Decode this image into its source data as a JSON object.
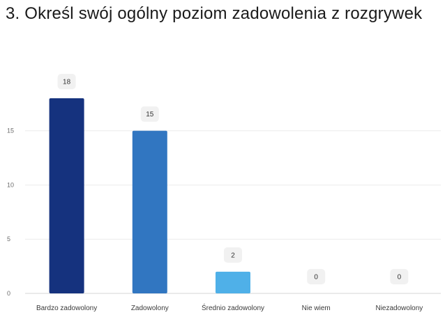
{
  "question": {
    "title": "3. Określ swój ogólny poziom zadowolenia z rozgrywek"
  },
  "chart_data": {
    "type": "bar",
    "title": "3. Określ swój ogólny poziom zadowolenia z rozgrywek",
    "categories": [
      "Bardzo zadowolony",
      "Zadowolony",
      "Średnio zadowolony",
      "Nie wiem",
      "Niezadowolony"
    ],
    "values": [
      18,
      15,
      2,
      0,
      0
    ],
    "colors": [
      "#15327e",
      "#3176c1",
      "#4fb0e8",
      "#4fb0e8",
      "#4fb0e8"
    ],
    "ylim": [
      0,
      18
    ],
    "yticks": [
      0,
      5,
      10,
      15
    ],
    "grid": true,
    "data_labels": true,
    "xlabel": "",
    "ylabel": ""
  }
}
